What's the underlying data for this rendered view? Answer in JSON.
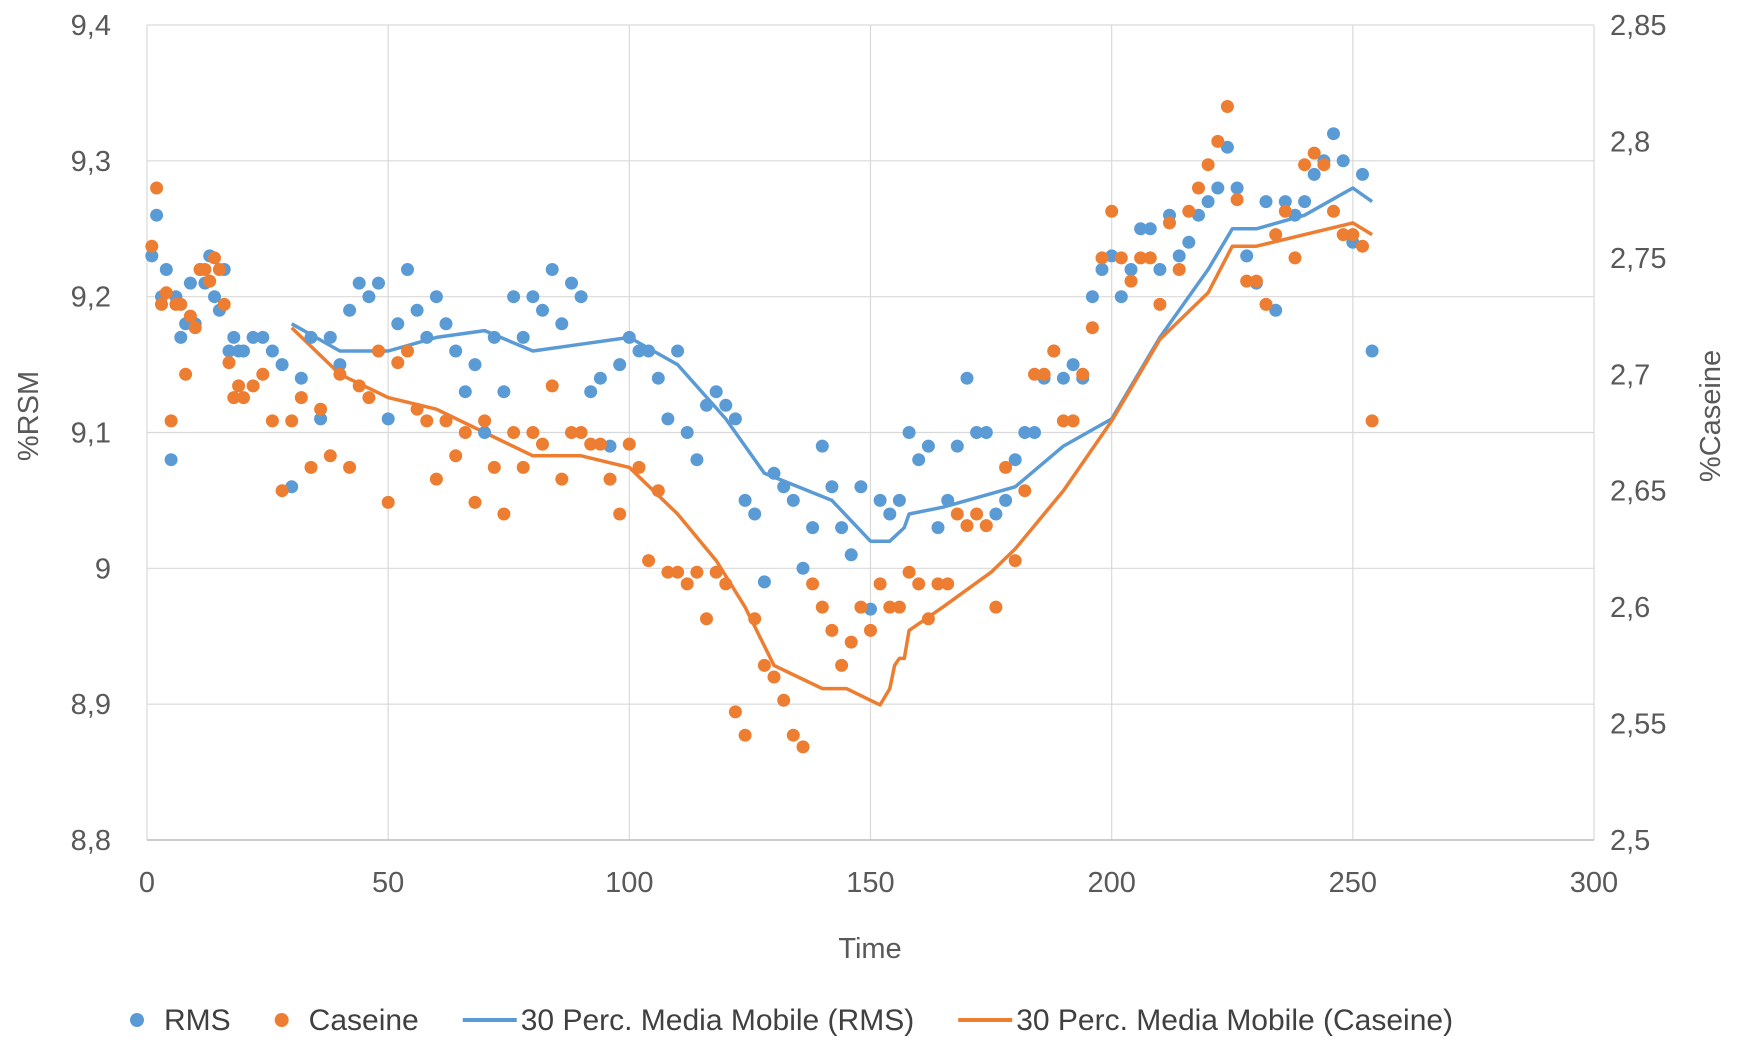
{
  "chart_data": {
    "type": "scatter",
    "title": "",
    "xlabel": "Time",
    "ylabel_left": "%RSM",
    "ylabel_right": "%Caseine",
    "xlim": [
      0,
      300
    ],
    "ylim_left": [
      8.8,
      9.4
    ],
    "ylim_right": [
      2.5,
      2.85
    ],
    "x_ticks": [
      0,
      50,
      100,
      150,
      200,
      250,
      300
    ],
    "x_tick_labels": [
      "0",
      "50",
      "100",
      "150",
      "200",
      "250",
      "300"
    ],
    "y_left_ticks": [
      8.8,
      8.9,
      9.0,
      9.1,
      9.2,
      9.3,
      9.4
    ],
    "y_left_tick_labels": [
      "8,8",
      "8,9",
      "9",
      "9,1",
      "9,2",
      "9,3",
      "9,4"
    ],
    "y_right_ticks": [
      2.5,
      2.55,
      2.6,
      2.65,
      2.7,
      2.75,
      2.8,
      2.85
    ],
    "y_right_tick_labels": [
      "2,5",
      "2,55",
      "2,6",
      "2,65",
      "2,7",
      "2,75",
      "2,8",
      "2,85"
    ],
    "grid": true,
    "legend_position": "bottom",
    "colors": {
      "rms": "#5b9bd5",
      "caseine": "#ed7d31"
    },
    "series": [
      {
        "name": "RMS",
        "kind": "points",
        "axis": "left",
        "x": [
          1,
          2,
          3,
          4,
          5,
          6,
          7,
          8,
          9,
          10,
          11,
          12,
          13,
          14,
          15,
          16,
          17,
          18,
          19,
          20,
          22,
          24,
          26,
          28,
          30,
          32,
          34,
          36,
          38,
          40,
          42,
          44,
          46,
          48,
          50,
          52,
          54,
          56,
          58,
          60,
          62,
          64,
          66,
          68,
          70,
          72,
          74,
          76,
          78,
          80,
          82,
          84,
          86,
          88,
          90,
          92,
          94,
          96,
          98,
          100,
          102,
          104,
          106,
          108,
          110,
          112,
          114,
          116,
          118,
          120,
          122,
          124,
          126,
          128,
          130,
          132,
          134,
          136,
          138,
          140,
          142,
          144,
          146,
          148,
          150,
          152,
          154,
          156,
          158,
          160,
          162,
          164,
          166,
          168,
          170,
          172,
          174,
          176,
          178,
          180,
          182,
          184,
          186,
          188,
          190,
          192,
          194,
          196,
          198,
          200,
          202,
          204,
          206,
          208,
          210,
          212,
          214,
          216,
          218,
          220,
          222,
          224,
          226,
          228,
          230,
          232,
          234,
          236,
          238,
          240,
          242,
          244,
          246,
          248,
          250,
          252,
          254
        ],
        "y": [
          9.23,
          9.26,
          9.2,
          9.22,
          9.08,
          9.2,
          9.17,
          9.18,
          9.21,
          9.18,
          9.22,
          9.21,
          9.23,
          9.2,
          9.19,
          9.22,
          9.16,
          9.17,
          9.16,
          9.16,
          9.17,
          9.17,
          9.16,
          9.15,
          9.06,
          9.14,
          9.17,
          9.11,
          9.17,
          9.15,
          9.19,
          9.21,
          9.2,
          9.21,
          9.11,
          9.18,
          9.22,
          9.19,
          9.17,
          9.2,
          9.18,
          9.16,
          9.13,
          9.15,
          9.1,
          9.17,
          9.13,
          9.2,
          9.17,
          9.2,
          9.19,
          9.22,
          9.18,
          9.21,
          9.2,
          9.13,
          9.14,
          9.09,
          9.15,
          9.17,
          9.16,
          9.16,
          9.14,
          9.11,
          9.16,
          9.1,
          9.08,
          9.12,
          9.13,
          9.12,
          9.11,
          9.05,
          9.04,
          8.99,
          9.07,
          9.06,
          9.05,
          9.0,
          9.03,
          9.09,
          9.06,
          9.03,
          9.01,
          9.06,
          8.97,
          9.05,
          9.04,
          9.05,
          9.1,
          9.08,
          9.09,
          9.03,
          9.05,
          9.09,
          9.14,
          9.1,
          9.1,
          9.04,
          9.05,
          9.08,
          9.1,
          9.1,
          9.14,
          9.16,
          9.14,
          9.15,
          9.14,
          9.2,
          9.22,
          9.23,
          9.2,
          9.22,
          9.25,
          9.25,
          9.22,
          9.26,
          9.23,
          9.24,
          9.26,
          9.27,
          9.28,
          9.31,
          9.28,
          9.23,
          9.21,
          9.27,
          9.19,
          9.27,
          9.26,
          9.27,
          9.29,
          9.3,
          9.32,
          9.3,
          9.24,
          9.29,
          9.16
        ]
      },
      {
        "name": "Caseine",
        "kind": "points",
        "axis": "right",
        "x": [
          1,
          2,
          3,
          4,
          5,
          6,
          7,
          8,
          9,
          10,
          11,
          12,
          13,
          14,
          15,
          16,
          17,
          18,
          19,
          20,
          22,
          24,
          26,
          28,
          30,
          32,
          34,
          36,
          38,
          40,
          42,
          44,
          46,
          48,
          50,
          52,
          54,
          56,
          58,
          60,
          62,
          64,
          66,
          68,
          70,
          72,
          74,
          76,
          78,
          80,
          82,
          84,
          86,
          88,
          90,
          92,
          94,
          96,
          98,
          100,
          102,
          104,
          106,
          108,
          110,
          112,
          114,
          116,
          118,
          120,
          122,
          124,
          126,
          128,
          130,
          132,
          134,
          136,
          138,
          140,
          142,
          144,
          146,
          148,
          150,
          152,
          154,
          156,
          158,
          160,
          162,
          164,
          166,
          168,
          170,
          172,
          174,
          176,
          178,
          180,
          182,
          184,
          186,
          188,
          190,
          192,
          194,
          196,
          198,
          200,
          202,
          204,
          206,
          208,
          210,
          212,
          214,
          216,
          218,
          220,
          222,
          224,
          226,
          228,
          230,
          232,
          234,
          236,
          238,
          240,
          242,
          244,
          246,
          248,
          250,
          252,
          254
        ],
        "y": [
          2.755,
          2.78,
          2.73,
          2.735,
          2.68,
          2.73,
          2.73,
          2.7,
          2.725,
          2.72,
          2.745,
          2.745,
          2.74,
          2.75,
          2.745,
          2.73,
          2.705,
          2.69,
          2.695,
          2.69,
          2.695,
          2.7,
          2.68,
          2.65,
          2.68,
          2.69,
          2.66,
          2.685,
          2.665,
          2.7,
          2.66,
          2.695,
          2.69,
          2.71,
          2.645,
          2.705,
          2.71,
          2.685,
          2.68,
          2.655,
          2.68,
          2.665,
          2.675,
          2.645,
          2.68,
          2.66,
          2.64,
          2.675,
          2.66,
          2.675,
          2.67,
          2.695,
          2.655,
          2.675,
          2.675,
          2.67,
          2.67,
          2.655,
          2.64,
          2.67,
          2.66,
          2.62,
          2.65,
          2.615,
          2.615,
          2.61,
          2.615,
          2.595,
          2.615,
          2.61,
          2.555,
          2.545,
          2.595,
          2.575,
          2.57,
          2.56,
          2.545,
          2.54,
          2.61,
          2.6,
          2.59,
          2.575,
          2.585,
          2.6,
          2.59,
          2.61,
          2.6,
          2.6,
          2.615,
          2.61,
          2.595,
          2.61,
          2.61,
          2.64,
          2.635,
          2.64,
          2.635,
          2.6,
          2.66,
          2.62,
          2.65,
          2.7,
          2.7,
          2.71,
          2.68,
          2.68,
          2.7,
          2.72,
          2.75,
          2.77,
          2.75,
          2.74,
          2.75,
          2.75,
          2.73,
          2.765,
          2.745,
          2.77,
          2.78,
          2.79,
          2.8,
          2.815,
          2.775,
          2.74,
          2.74,
          2.73,
          2.76,
          2.77,
          2.75,
          2.79,
          2.795,
          2.79,
          2.77,
          2.76,
          2.76,
          2.755,
          2.68
        ]
      },
      {
        "name": "30 Perc. Media Mobile (RMS)",
        "kind": "line",
        "axis": "left",
        "x": [
          30,
          40,
          50,
          60,
          70,
          80,
          90,
          100,
          110,
          120,
          124,
          128,
          135,
          142,
          150,
          154,
          157,
          158,
          165,
          170,
          180,
          190,
          200,
          210,
          220,
          225,
          230,
          240,
          250,
          254
        ],
        "y": [
          9.18,
          9.16,
          9.16,
          9.17,
          9.175,
          9.16,
          9.165,
          9.17,
          9.15,
          9.11,
          9.09,
          9.07,
          9.06,
          9.05,
          9.02,
          9.02,
          9.03,
          9.04,
          9.045,
          9.05,
          9.06,
          9.09,
          9.11,
          9.17,
          9.22,
          9.25,
          9.25,
          9.26,
          9.28,
          9.27
        ]
      },
      {
        "name": "30 Perc. Media Mobile (Caseine)",
        "kind": "line",
        "axis": "right",
        "x": [
          30,
          40,
          50,
          60,
          70,
          80,
          90,
          100,
          110,
          118,
          124,
          130,
          135,
          140,
          145,
          150,
          152,
          154,
          155,
          156,
          157,
          158,
          165,
          175,
          180,
          190,
          200,
          210,
          220,
          225,
          230,
          240,
          250,
          254
        ],
        "y": [
          2.72,
          2.7,
          2.69,
          2.685,
          2.675,
          2.665,
          2.665,
          2.66,
          2.64,
          2.62,
          2.6,
          2.575,
          2.57,
          2.565,
          2.565,
          2.56,
          2.558,
          2.565,
          2.575,
          2.578,
          2.578,
          2.59,
          2.6,
          2.615,
          2.625,
          2.65,
          2.68,
          2.715,
          2.735,
          2.755,
          2.755,
          2.76,
          2.765,
          2.76
        ]
      }
    ]
  }
}
